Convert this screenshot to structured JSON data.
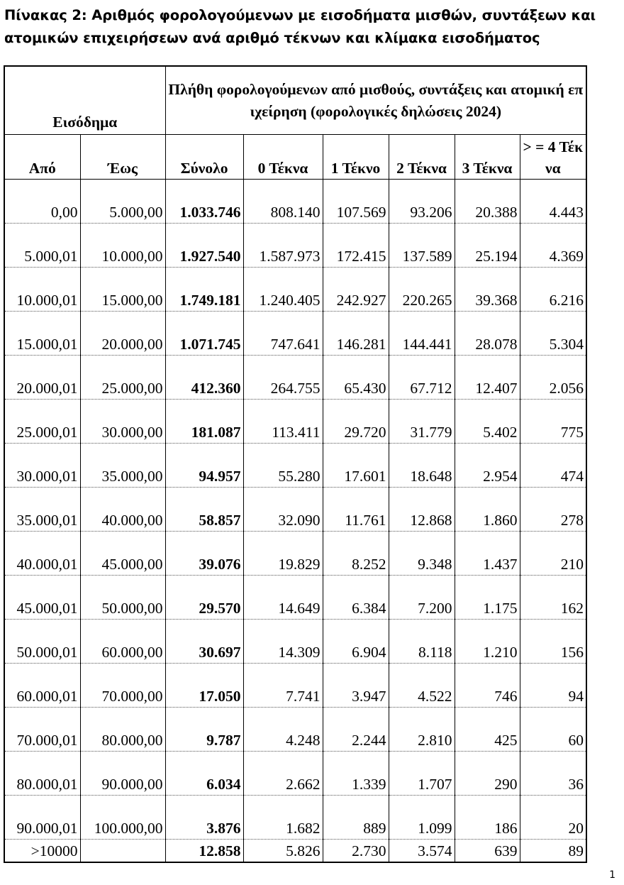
{
  "title": "Πίνακας 2: Αριθμός φορολογούμενων με εισοδήματα μισθών, συντάξεων και ατομικών επιχειρήσεων ανά αριθμό τέκνων και κλίμακα εισοδήματος",
  "header": {
    "income_group": "Εισόδημα",
    "counts_group": "Πλήθη φορολογούμενων από μισθούς, συντάξεις και ατομική επιχείρηση (φορολογικές δηλώσεις 2024)",
    "columns": [
      "Από",
      "Έως",
      "Σύνολο",
      "0 Τέκνα",
      "1 Τέκνο",
      "2 Τέκνα",
      "3 Τέκνα",
      "> = 4 Τέκνα"
    ]
  },
  "rows": [
    {
      "from": "0,00",
      "to": "5.000,00",
      "total": "1.033.746",
      "c0": "808.140",
      "c1": "107.569",
      "c2": "93.206",
      "c3": "20.388",
      "c4": "4.443"
    },
    {
      "from": "5.000,01",
      "to": "10.000,00",
      "total": "1.927.540",
      "c0": "1.587.973",
      "c1": "172.415",
      "c2": "137.589",
      "c3": "25.194",
      "c4": "4.369"
    },
    {
      "from": "10.000,01",
      "to": "15.000,00",
      "total": "1.749.181",
      "c0": "1.240.405",
      "c1": "242.927",
      "c2": "220.265",
      "c3": "39.368",
      "c4": "6.216"
    },
    {
      "from": "15.000,01",
      "to": "20.000,00",
      "total": "1.071.745",
      "c0": "747.641",
      "c1": "146.281",
      "c2": "144.441",
      "c3": "28.078",
      "c4": "5.304"
    },
    {
      "from": "20.000,01",
      "to": "25.000,00",
      "total": "412.360",
      "c0": "264.755",
      "c1": "65.430",
      "c2": "67.712",
      "c3": "12.407",
      "c4": "2.056"
    },
    {
      "from": "25.000,01",
      "to": "30.000,00",
      "total": "181.087",
      "c0": "113.411",
      "c1": "29.720",
      "c2": "31.779",
      "c3": "5.402",
      "c4": "775"
    },
    {
      "from": "30.000,01",
      "to": "35.000,00",
      "total": "94.957",
      "c0": "55.280",
      "c1": "17.601",
      "c2": "18.648",
      "c3": "2.954",
      "c4": "474"
    },
    {
      "from": "35.000,01",
      "to": "40.000,00",
      "total": "58.857",
      "c0": "32.090",
      "c1": "11.761",
      "c2": "12.868",
      "c3": "1.860",
      "c4": "278"
    },
    {
      "from": "40.000,01",
      "to": "45.000,00",
      "total": "39.076",
      "c0": "19.829",
      "c1": "8.252",
      "c2": "9.348",
      "c3": "1.437",
      "c4": "210"
    },
    {
      "from": "45.000,01",
      "to": "50.000,00",
      "total": "29.570",
      "c0": "14.649",
      "c1": "6.384",
      "c2": "7.200",
      "c3": "1.175",
      "c4": "162"
    },
    {
      "from": "50.000,01",
      "to": "60.000,00",
      "total": "30.697",
      "c0": "14.309",
      "c1": "6.904",
      "c2": "8.118",
      "c3": "1.210",
      "c4": "156"
    },
    {
      "from": "60.000,01",
      "to": "70.000,00",
      "total": "17.050",
      "c0": "7.741",
      "c1": "3.947",
      "c2": "4.522",
      "c3": "746",
      "c4": "94"
    },
    {
      "from": "70.000,01",
      "to": "80.000,00",
      "total": "9.787",
      "c0": "4.248",
      "c1": "2.244",
      "c2": "2.810",
      "c3": "425",
      "c4": "60"
    },
    {
      "from": "80.000,01",
      "to": "90.000,00",
      "total": "6.034",
      "c0": "2.662",
      "c1": "1.339",
      "c2": "1.707",
      "c3": "290",
      "c4": "36"
    },
    {
      "from": "90.000,01",
      "to": "100.000,00",
      "total": "3.876",
      "c0": "1.682",
      "c1": "889",
      "c2": "1.099",
      "c3": "186",
      "c4": "20"
    },
    {
      "from": ">10000",
      "to": "",
      "total": "12.858",
      "c0": "5.826",
      "c1": "2.730",
      "c2": "3.574",
      "c3": "639",
      "c4": "89"
    }
  ],
  "page_number": "1"
}
